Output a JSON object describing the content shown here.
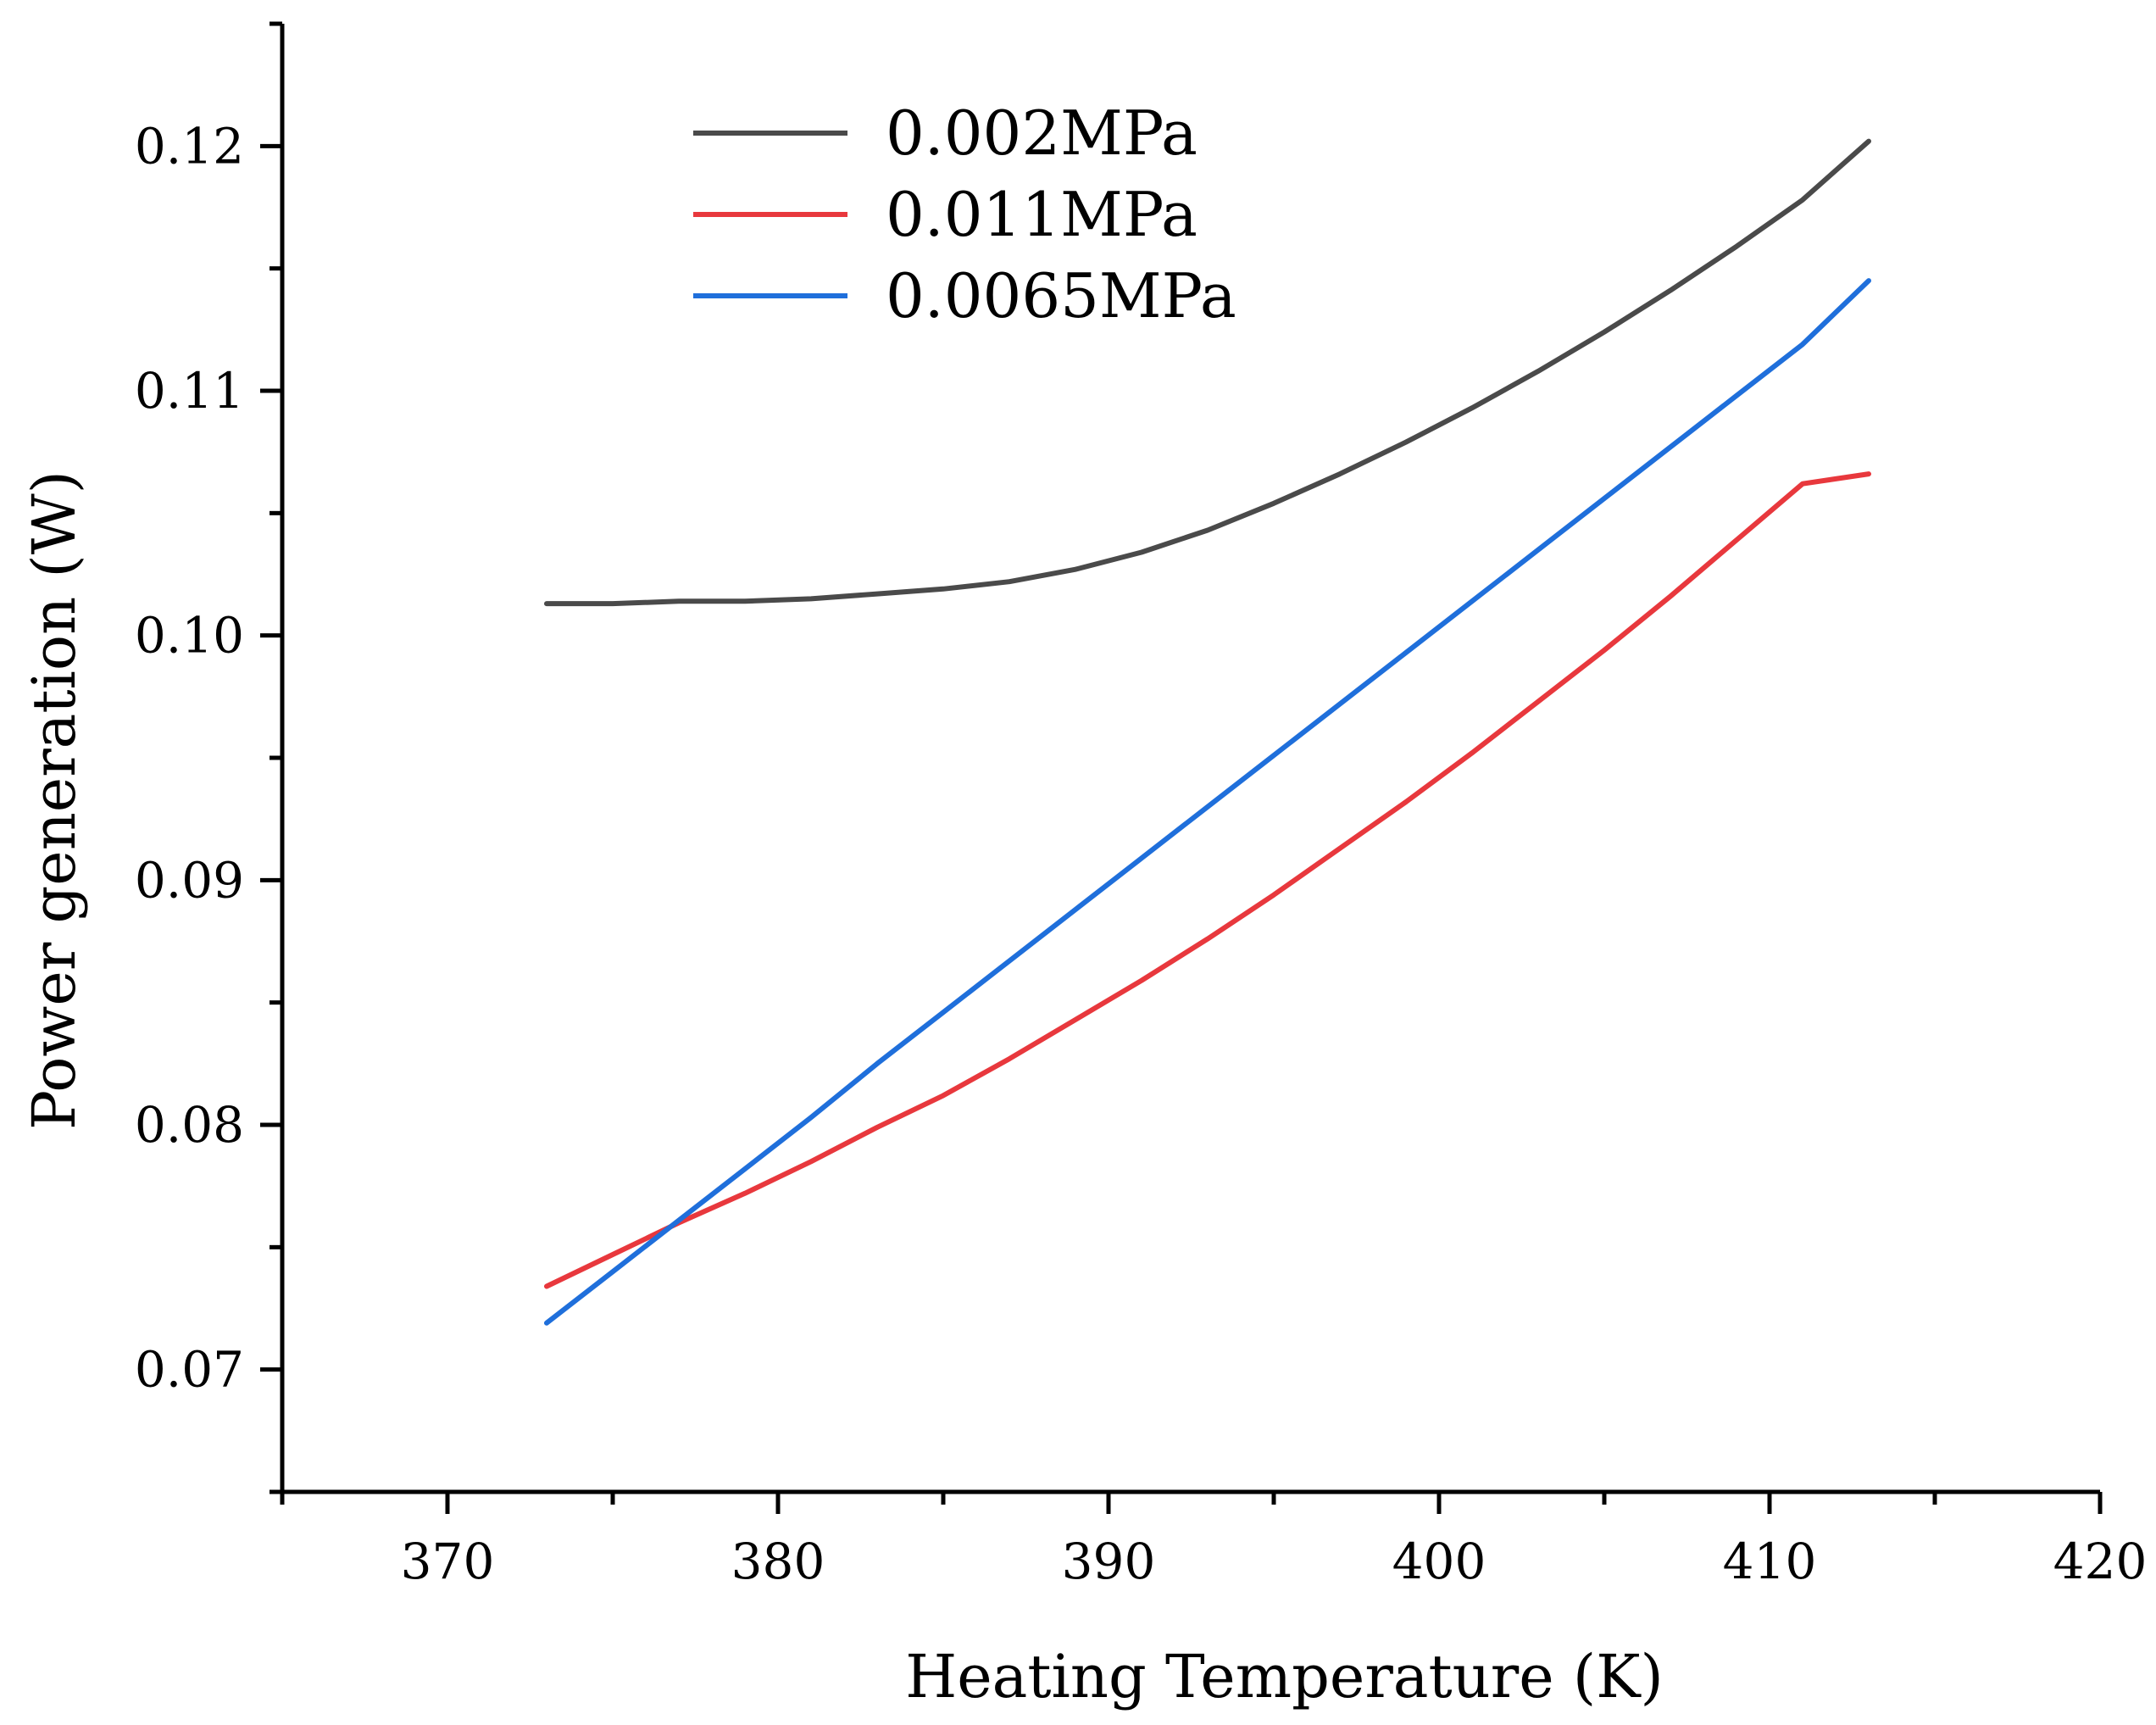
{
  "chart_data": {
    "type": "line",
    "title": "",
    "xlabel": "Heating Temperature (K)",
    "ylabel": "Power generation (W)",
    "xlim": [
      365,
      420
    ],
    "ylim": [
      0.065,
      0.125
    ],
    "x_ticks": [
      370,
      380,
      390,
      400,
      410,
      420
    ],
    "x_tick_labels": [
      "370",
      "380",
      "390",
      "400",
      "410",
      "420"
    ],
    "y_ticks": [
      0.07,
      0.08,
      0.09,
      0.1,
      0.11,
      0.12
    ],
    "y_tick_labels": [
      "0.07",
      "0.08",
      "0.09",
      "0.10",
      "0.11",
      "0.12"
    ],
    "grid": false,
    "legend_position": "top-left",
    "x": [
      373,
      375,
      377,
      379,
      381,
      383,
      385,
      387,
      389,
      391,
      393,
      395,
      397,
      399,
      401,
      403,
      405,
      407,
      409,
      411,
      413
    ],
    "series": [
      {
        "name": "0.002MPa",
        "color": "#4a4a4a",
        "values": [
          0.1013,
          0.1013,
          0.1014,
          0.1014,
          0.1015,
          0.1017,
          0.1019,
          0.1022,
          0.1027,
          0.1034,
          0.1043,
          0.1054,
          0.1066,
          0.1079,
          0.1093,
          0.1108,
          0.1124,
          0.1141,
          0.1159,
          0.1178,
          0.1202
        ]
      },
      {
        "name": "0.011MPa",
        "color": "#e8383d",
        "values": [
          0.0734,
          0.0747,
          0.076,
          0.0772,
          0.0785,
          0.0799,
          0.0812,
          0.0827,
          0.0843,
          0.0859,
          0.0876,
          0.0894,
          0.0913,
          0.0932,
          0.0952,
          0.0973,
          0.0994,
          0.1016,
          0.1039,
          0.1062,
          0.1066
        ]
      },
      {
        "name": "0.0065MPa",
        "color": "#1f6fdb",
        "values": [
          0.0719,
          0.074,
          0.0761,
          0.0782,
          0.0803,
          0.0825,
          0.0846,
          0.0867,
          0.0888,
          0.0909,
          0.093,
          0.0951,
          0.0972,
          0.0993,
          0.1014,
          0.1035,
          0.1056,
          0.1077,
          0.1098,
          0.1119,
          0.1145
        ]
      }
    ]
  }
}
